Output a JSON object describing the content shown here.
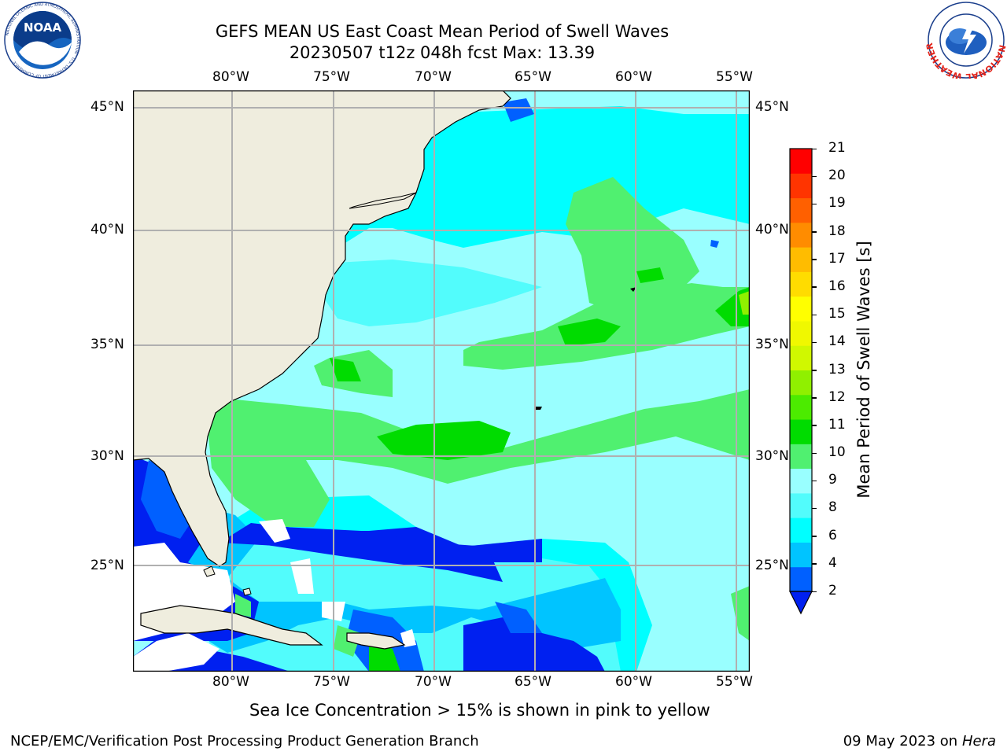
{
  "title": {
    "line1": "GEFS MEAN US East Coast Mean Period of Swell Waves",
    "line2": "20230507 t12z 048h fcst   Max: 13.39"
  },
  "logos": {
    "left": "NOAA",
    "left_ring": "NATIONAL OCEANIC AND ATMOSPHERIC ADMINISTRATION · U.S. DEPARTMENT OF COMMERCE",
    "right_ring": "NATIONAL WEATHER SERVICE"
  },
  "map": {
    "lon_labels": [
      "80°W",
      "75°W",
      "70°W",
      "65°W",
      "60°W",
      "55°W"
    ],
    "lat_labels": [
      "45°N",
      "40°N",
      "35°N",
      "30°N",
      "25°N"
    ],
    "land_color": "#efedde",
    "grid_color": "#b0b0b0"
  },
  "colorbar": {
    "title": "Mean Period of Swell Waves [s]",
    "ticks": [
      "21",
      "20",
      "19",
      "18",
      "17",
      "16",
      "15",
      "14",
      "13",
      "12",
      "11",
      "10",
      "9",
      "8",
      "6",
      "4",
      "2"
    ],
    "colors_bottom_up": [
      "#0060ff",
      "#00c4ff",
      "#00ffff",
      "#52fcfc",
      "#99ffff",
      "#50f070",
      "#00dc00",
      "#4ceb00",
      "#90f000",
      "#d0f800",
      "#f0f800",
      "#ffff00",
      "#ffdc00",
      "#ffbc00",
      "#ff8c00",
      "#ff6000",
      "#ff3400",
      "#ff0000"
    ],
    "under_color": "#0020f0",
    "unit": "s"
  },
  "caption": "Sea Ice Concentration > 15% is shown in pink to yellow",
  "footer": {
    "left": "NCEP/EMC/Verification Post Processing Product Generation Branch",
    "right_date": "09 May 2023 on",
    "right_host": "Hera"
  }
}
